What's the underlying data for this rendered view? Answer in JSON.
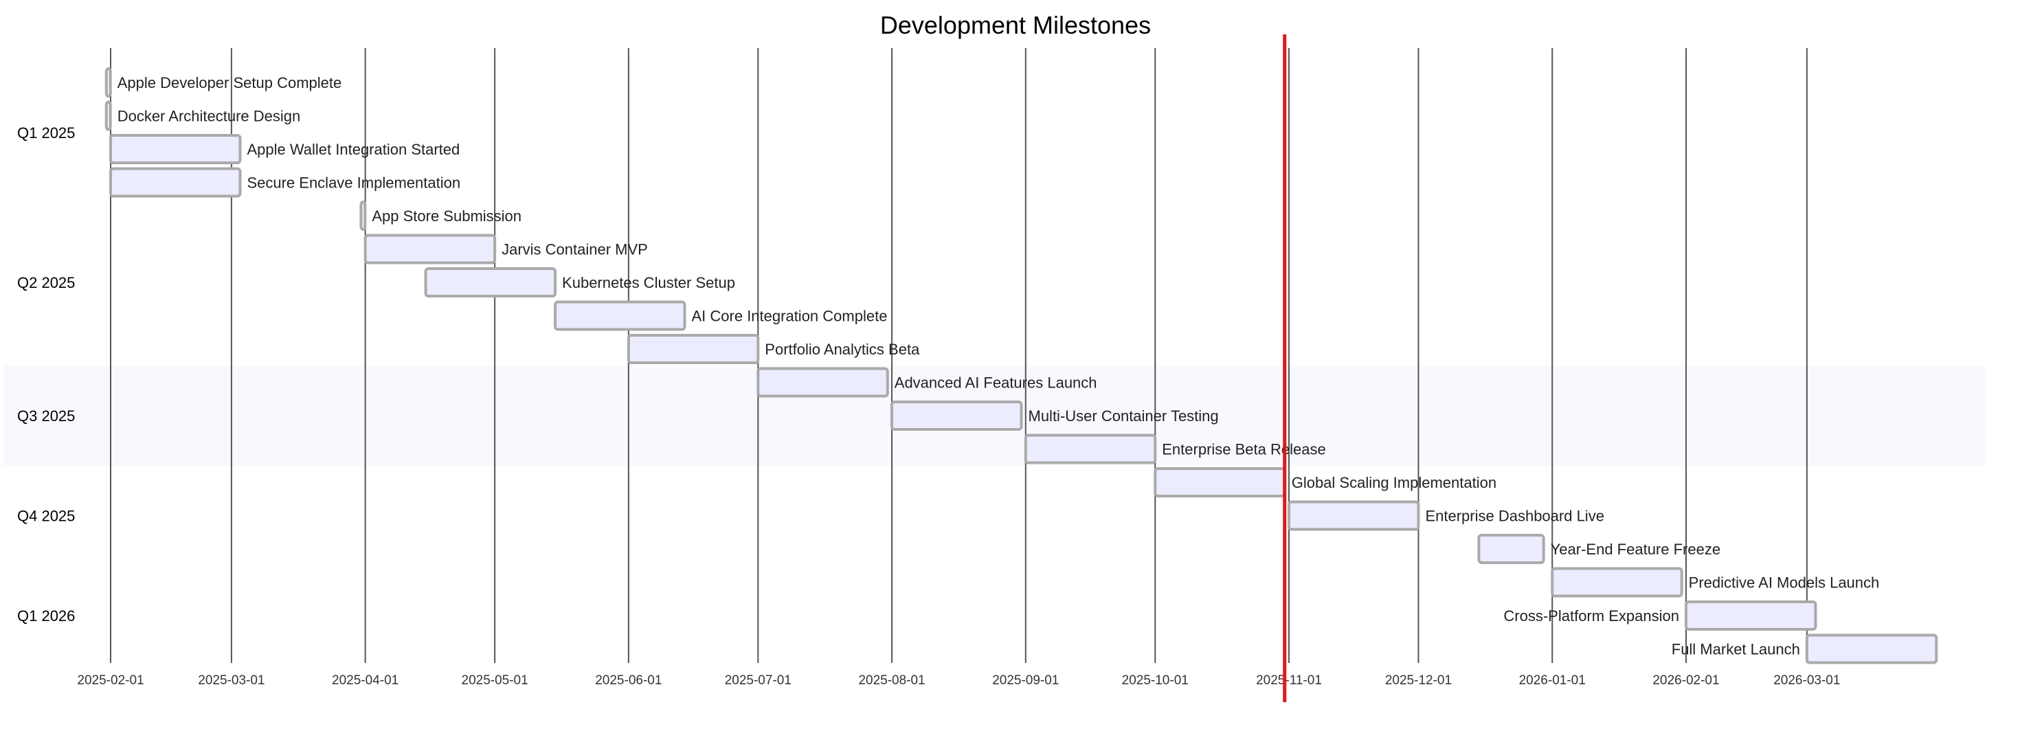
{
  "chart_data": {
    "type": "gantt",
    "title": "Development Milestones",
    "today": "2025-10-31",
    "today_color": "#e0191a",
    "bar_fill": "#ececff",
    "bar_stroke": "#aaaaaa",
    "highlight_section_color": "#f8f8ff",
    "x_ticks": [
      "2025-02-01",
      "2025-03-01",
      "2025-04-01",
      "2025-05-01",
      "2025-06-01",
      "2025-07-01",
      "2025-08-01",
      "2025-09-01",
      "2025-10-01",
      "2025-11-01",
      "2025-12-01",
      "2026-01-01",
      "2026-02-01",
      "2026-03-01"
    ],
    "sections": [
      {
        "name": "Q1 2025",
        "highlight": false,
        "tasks": [
          {
            "label": "Apple Developer Setup Complete",
            "start": "2025-01-31",
            "end": "2025-02-01",
            "milestone": true,
            "label_side": "right"
          },
          {
            "label": "Docker Architecture Design",
            "start": "2025-01-31",
            "end": "2025-02-01",
            "milestone": true,
            "label_side": "right"
          },
          {
            "label": "Apple Wallet Integration Started",
            "start": "2025-02-01",
            "end": "2025-03-03",
            "label_side": "right"
          },
          {
            "label": "Secure Enclave Implementation",
            "start": "2025-02-01",
            "end": "2025-03-03",
            "label_side": "right"
          }
        ]
      },
      {
        "name": "Q2 2025",
        "highlight": false,
        "tasks": [
          {
            "label": "App Store Submission",
            "start": "2025-03-31",
            "end": "2025-04-01",
            "milestone": true,
            "label_side": "right"
          },
          {
            "label": "Jarvis Container MVP",
            "start": "2025-04-01",
            "end": "2025-05-01",
            "label_side": "right"
          },
          {
            "label": "Kubernetes Cluster Setup",
            "start": "2025-04-15",
            "end": "2025-05-15",
            "label_side": "right"
          },
          {
            "label": "AI Core Integration Complete",
            "start": "2025-05-15",
            "end": "2025-06-14",
            "label_side": "right"
          },
          {
            "label": "Portfolio Analytics Beta",
            "start": "2025-06-01",
            "end": "2025-07-01",
            "label_side": "right"
          }
        ]
      },
      {
        "name": "Q3 2025",
        "highlight": true,
        "tasks": [
          {
            "label": "Advanced AI Features Launch",
            "start": "2025-07-01",
            "end": "2025-07-31",
            "label_side": "right"
          },
          {
            "label": "Multi-User Container Testing",
            "start": "2025-08-01",
            "end": "2025-08-31",
            "label_side": "right"
          },
          {
            "label": "Enterprise Beta Release",
            "start": "2025-09-01",
            "end": "2025-10-01",
            "label_side": "right"
          }
        ]
      },
      {
        "name": "Q4 2025",
        "highlight": false,
        "tasks": [
          {
            "label": "Global Scaling Implementation",
            "start": "2025-10-01",
            "end": "2025-10-31",
            "label_side": "right"
          },
          {
            "label": "Enterprise Dashboard Live",
            "start": "2025-11-01",
            "end": "2025-12-01",
            "label_side": "right"
          },
          {
            "label": "Year-End Feature Freeze",
            "start": "2025-12-15",
            "end": "2025-12-30",
            "label_side": "right"
          }
        ]
      },
      {
        "name": "Q1 2026",
        "highlight": false,
        "tasks": [
          {
            "label": "Predictive AI Models Launch",
            "start": "2026-01-01",
            "end": "2026-01-31",
            "label_side": "right"
          },
          {
            "label": "Cross-Platform Expansion",
            "start": "2026-02-01",
            "end": "2026-03-03",
            "label_side": "left"
          },
          {
            "label": "Full Market Launch",
            "start": "2026-03-01",
            "end": "2026-03-31",
            "label_side": "left"
          }
        ]
      }
    ]
  }
}
